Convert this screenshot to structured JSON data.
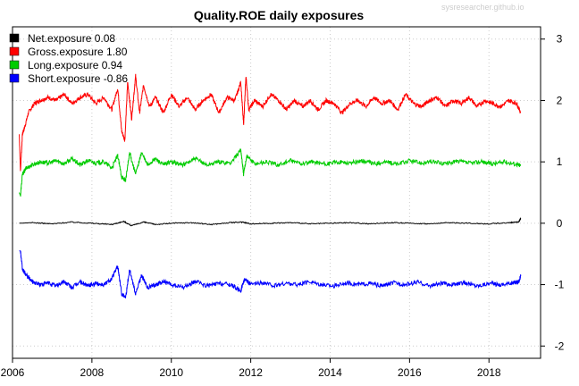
{
  "watermark": "sysresearcher.github.io",
  "chart_data": {
    "type": "line",
    "title": "Quality.ROE daily exposures",
    "xlabel": "",
    "ylabel": "",
    "xlim": [
      2006.0,
      2019.3
    ],
    "ylim": [
      -2.2,
      3.2
    ],
    "x_ticks": [
      2006,
      2008,
      2010,
      2012,
      2014,
      2016,
      2018
    ],
    "x_tick_labels": [
      "2006",
      "2008",
      "2010",
      "2012",
      "2014",
      "2016",
      "2018"
    ],
    "y_ticks": [
      -2,
      -1,
      0,
      1,
      2,
      3
    ],
    "y_tick_labels": [
      "-2",
      "-1",
      "0",
      "1",
      "2",
      "3"
    ],
    "y_axis_side": "right",
    "grid": true,
    "legend_position": "top-left",
    "legend": [
      {
        "label": "Net.exposure  0.08",
        "color": "#000000"
      },
      {
        "label": "Gross.exposure  1.80",
        "color": "#ff0000"
      },
      {
        "label": "Long.exposure  0.94",
        "color": "#00cc00"
      },
      {
        "label": "Short.exposure -0.86",
        "color": "#0000ff"
      }
    ],
    "series": [
      {
        "name": "Gross.exposure",
        "color": "#ff0000",
        "x": [
          2006.17,
          2006.2,
          2006.25,
          2006.3,
          2006.4,
          2006.55,
          2006.7,
          2006.9,
          2007.1,
          2007.3,
          2007.5,
          2007.7,
          2007.9,
          2008.1,
          2008.3,
          2008.5,
          2008.65,
          2008.75,
          2008.83,
          2008.9,
          2009.0,
          2009.1,
          2009.2,
          2009.3,
          2009.45,
          2009.6,
          2009.8,
          2010.0,
          2010.2,
          2010.4,
          2010.6,
          2010.8,
          2011.0,
          2011.2,
          2011.4,
          2011.6,
          2011.75,
          2011.82,
          2011.88,
          2011.95,
          2012.1,
          2012.3,
          2012.5,
          2012.7,
          2012.9,
          2013.1,
          2013.3,
          2013.5,
          2013.7,
          2013.9,
          2014.1,
          2014.3,
          2014.5,
          2014.7,
          2014.9,
          2015.1,
          2015.3,
          2015.5,
          2015.7,
          2015.9,
          2016.1,
          2016.3,
          2016.5,
          2016.7,
          2016.9,
          2017.1,
          2017.3,
          2017.5,
          2017.7,
          2017.9,
          2018.1,
          2018.3,
          2018.5,
          2018.7,
          2018.8
        ],
        "y": [
          1.45,
          0.85,
          1.45,
          1.55,
          1.8,
          1.95,
          2.0,
          2.05,
          2.0,
          2.1,
          1.95,
          2.05,
          2.1,
          1.95,
          2.05,
          1.85,
          2.2,
          1.5,
          1.35,
          2.3,
          1.7,
          2.4,
          1.8,
          2.25,
          1.9,
          2.05,
          1.8,
          2.1,
          1.9,
          2.05,
          1.85,
          2.0,
          2.1,
          1.8,
          2.05,
          2.0,
          2.3,
          1.6,
          2.4,
          1.85,
          2.0,
          1.9,
          2.1,
          2.0,
          1.85,
          2.0,
          1.9,
          2.0,
          1.85,
          2.0,
          1.95,
          1.8,
          1.95,
          2.0,
          1.9,
          2.05,
          1.95,
          2.0,
          1.85,
          2.1,
          1.95,
          1.9,
          2.0,
          2.05,
          1.9,
          2.0,
          1.95,
          2.05,
          1.9,
          2.0,
          1.95,
          1.9,
          2.0,
          1.95,
          1.8
        ]
      },
      {
        "name": "Long.exposure",
        "color": "#00cc00",
        "x": [
          2006.17,
          2006.2,
          2006.25,
          2006.35,
          2006.5,
          2006.7,
          2006.9,
          2007.1,
          2007.3,
          2007.5,
          2007.7,
          2007.9,
          2008.1,
          2008.3,
          2008.5,
          2008.65,
          2008.75,
          2008.85,
          2008.95,
          2009.1,
          2009.25,
          2009.4,
          2009.6,
          2009.8,
          2010.0,
          2010.3,
          2010.6,
          2010.9,
          2011.2,
          2011.5,
          2011.75,
          2011.82,
          2011.9,
          2012.1,
          2012.4,
          2012.7,
          2013.0,
          2013.3,
          2013.6,
          2013.9,
          2014.2,
          2014.5,
          2014.8,
          2015.1,
          2015.4,
          2015.7,
          2016.0,
          2016.3,
          2016.6,
          2016.9,
          2017.2,
          2017.5,
          2017.8,
          2018.1,
          2018.4,
          2018.7,
          2018.8
        ],
        "y": [
          0.5,
          0.45,
          0.8,
          0.9,
          0.95,
          1.0,
          0.98,
          1.02,
          0.97,
          1.05,
          0.95,
          1.02,
          0.98,
          1.0,
          0.9,
          1.1,
          0.75,
          0.7,
          1.15,
          0.8,
          1.15,
          0.95,
          1.05,
          0.95,
          1.0,
          0.95,
          1.05,
          0.95,
          1.0,
          0.98,
          1.2,
          0.8,
          1.1,
          0.97,
          1.0,
          0.95,
          1.02,
          0.97,
          1.0,
          0.96,
          1.0,
          0.98,
          1.02,
          0.97,
          1.0,
          0.96,
          1.02,
          0.98,
          1.0,
          0.97,
          1.01,
          0.98,
          1.0,
          0.97,
          1.0,
          0.96,
          0.94
        ]
      },
      {
        "name": "Net.exposure",
        "color": "#000000",
        "x": [
          2006.17,
          2006.5,
          2007.0,
          2007.5,
          2008.0,
          2008.5,
          2008.8,
          2009.0,
          2009.3,
          2009.6,
          2010.0,
          2010.5,
          2011.0,
          2011.5,
          2011.8,
          2012.0,
          2012.5,
          2013.0,
          2013.5,
          2014.0,
          2014.5,
          2015.0,
          2015.5,
          2016.0,
          2016.5,
          2017.0,
          2017.5,
          2018.0,
          2018.5,
          2018.75,
          2018.8
        ],
        "y": [
          0.0,
          0.01,
          -0.01,
          0.02,
          0.0,
          -0.02,
          0.03,
          -0.04,
          0.02,
          -0.02,
          0.0,
          0.01,
          -0.02,
          0.01,
          0.02,
          -0.01,
          0.0,
          0.01,
          -0.01,
          0.0,
          0.01,
          -0.01,
          0.01,
          0.0,
          -0.01,
          0.01,
          0.0,
          -0.01,
          0.01,
          0.02,
          0.08
        ]
      },
      {
        "name": "Short.exposure",
        "color": "#0000ff",
        "x": [
          2006.17,
          2006.2,
          2006.25,
          2006.35,
          2006.5,
          2006.7,
          2006.9,
          2007.1,
          2007.3,
          2007.5,
          2007.7,
          2007.9,
          2008.1,
          2008.3,
          2008.5,
          2008.65,
          2008.75,
          2008.85,
          2008.95,
          2009.1,
          2009.25,
          2009.4,
          2009.6,
          2009.8,
          2010.0,
          2010.3,
          2010.6,
          2010.9,
          2011.2,
          2011.5,
          2011.75,
          2011.85,
          2012.0,
          2012.3,
          2012.6,
          2012.9,
          2013.2,
          2013.5,
          2013.8,
          2014.1,
          2014.4,
          2014.7,
          2015.0,
          2015.3,
          2015.6,
          2015.9,
          2016.2,
          2016.5,
          2016.8,
          2017.1,
          2017.4,
          2017.7,
          2018.0,
          2018.3,
          2018.6,
          2018.75,
          2018.8
        ],
        "y": [
          -0.45,
          -0.45,
          -0.75,
          -0.85,
          -0.95,
          -1.0,
          -0.97,
          -1.02,
          -0.95,
          -1.05,
          -0.95,
          -1.02,
          -0.98,
          -1.0,
          -0.9,
          -0.7,
          -1.15,
          -1.2,
          -0.75,
          -1.15,
          -0.85,
          -1.05,
          -1.0,
          -0.95,
          -1.0,
          -1.05,
          -0.95,
          -1.02,
          -0.98,
          -1.0,
          -1.1,
          -0.9,
          -1.0,
          -0.97,
          -1.02,
          -0.98,
          -1.0,
          -0.95,
          -1.0,
          -1.02,
          -0.97,
          -1.0,
          -0.98,
          -1.02,
          -0.97,
          -1.0,
          -0.96,
          -1.02,
          -0.98,
          -1.0,
          -0.97,
          -1.02,
          -0.98,
          -1.0,
          -0.97,
          -0.95,
          -0.86
        ]
      }
    ]
  }
}
